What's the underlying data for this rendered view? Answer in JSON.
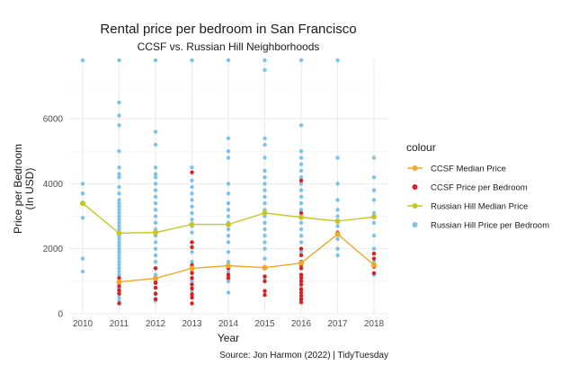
{
  "chart_data": {
    "type": "scatter",
    "title": "Rental price per bedroom in San Francisco",
    "subtitle": "CCSF vs. Russian Hill Neighborhoods",
    "xlabel": "Year",
    "ylabel_lines": [
      "Price per Bedroom",
      "(In USD)"
    ],
    "caption": "Source: Jon Harmon (2022) | TidyTuesday",
    "xlim": [
      2010,
      2018
    ],
    "ylim": [
      0,
      7800
    ],
    "x_ticks": [
      2010,
      2011,
      2012,
      2013,
      2014,
      2015,
      2016,
      2017,
      2018
    ],
    "y_ticks": [
      0,
      2000,
      4000,
      6000
    ],
    "grid": true,
    "legend": {
      "title": "colour",
      "placement": "right",
      "entries": [
        {
          "label": "CCSF Median Price",
          "color": "#F5A623",
          "kind": "line-point"
        },
        {
          "label": "CCSF Price per Bedroom",
          "color": "#E41A1C",
          "kind": "point"
        },
        {
          "label": "Russian Hill Median Price",
          "color": "#C7C723",
          "kind": "line-point"
        },
        {
          "label": "Russian Hill Price per Bedroom",
          "color": "#7CC3EB",
          "kind": "point"
        }
      ]
    },
    "series": [
      {
        "name": "CCSF Median Price",
        "kind": "line",
        "color": "#F5A623",
        "x": [
          2011,
          2012,
          2013,
          2014,
          2015,
          2016,
          2017,
          2018
        ],
        "y": [
          980,
          1090,
          1400,
          1480,
          1420,
          1560,
          2450,
          1500
        ]
      },
      {
        "name": "Russian Hill Median Price",
        "kind": "line",
        "color": "#C7C723",
        "x": [
          2010,
          2011,
          2012,
          2013,
          2014,
          2015,
          2016,
          2017,
          2018
        ],
        "y": [
          3400,
          2480,
          2500,
          2750,
          2750,
          3100,
          2970,
          2850,
          2980
        ]
      },
      {
        "name": "CCSF Price per Bedroom",
        "kind": "points",
        "color": "#E41A1C",
        "points": [
          [
            2011,
            320
          ],
          [
            2011,
            620
          ],
          [
            2011,
            720
          ],
          [
            2011,
            850
          ],
          [
            2011,
            1000
          ],
          [
            2011,
            1100
          ],
          [
            2012,
            450
          ],
          [
            2012,
            620
          ],
          [
            2012,
            800
          ],
          [
            2012,
            950
          ],
          [
            2012,
            1050
          ],
          [
            2012,
            1400
          ],
          [
            2013,
            320
          ],
          [
            2013,
            500
          ],
          [
            2013,
            600
          ],
          [
            2013,
            780
          ],
          [
            2013,
            900
          ],
          [
            2013,
            1100
          ],
          [
            2013,
            1250
          ],
          [
            2013,
            1500
          ],
          [
            2013,
            2050
          ],
          [
            2013,
            2200
          ],
          [
            2013,
            4350
          ],
          [
            2014,
            1100
          ],
          [
            2014,
            1200
          ],
          [
            2014,
            1400
          ],
          [
            2015,
            580
          ],
          [
            2015,
            700
          ],
          [
            2015,
            1000
          ],
          [
            2015,
            1150
          ],
          [
            2015,
            1400
          ],
          [
            2016,
            350
          ],
          [
            2016,
            450
          ],
          [
            2016,
            550
          ],
          [
            2016,
            650
          ],
          [
            2016,
            750
          ],
          [
            2016,
            900
          ],
          [
            2016,
            1000
          ],
          [
            2016,
            1100
          ],
          [
            2016,
            1200
          ],
          [
            2016,
            1400
          ],
          [
            2016,
            1500
          ],
          [
            2016,
            1600
          ],
          [
            2016,
            1800
          ],
          [
            2016,
            2000
          ],
          [
            2016,
            3100
          ],
          [
            2016,
            4100
          ],
          [
            2017,
            2500
          ],
          [
            2018,
            1250
          ],
          [
            2018,
            1450
          ],
          [
            2018,
            1700
          ],
          [
            2018,
            1850
          ]
        ]
      },
      {
        "name": "Russian Hill Price per Bedroom",
        "kind": "points",
        "color": "#7CC3EB",
        "points": [
          [
            2010,
            1300
          ],
          [
            2010,
            1700
          ],
          [
            2010,
            2950
          ],
          [
            2010,
            3700
          ],
          [
            2010,
            4000
          ],
          [
            2010,
            7800
          ],
          [
            2011,
            400
          ],
          [
            2011,
            500
          ],
          [
            2011,
            600
          ],
          [
            2011,
            700
          ],
          [
            2011,
            800
          ],
          [
            2011,
            900
          ],
          [
            2011,
            1000
          ],
          [
            2011,
            1100
          ],
          [
            2011,
            1200
          ],
          [
            2011,
            1300
          ],
          [
            2011,
            1400
          ],
          [
            2011,
            1500
          ],
          [
            2011,
            1600
          ],
          [
            2011,
            1700
          ],
          [
            2011,
            1800
          ],
          [
            2011,
            1900
          ],
          [
            2011,
            2000
          ],
          [
            2011,
            2100
          ],
          [
            2011,
            2200
          ],
          [
            2011,
            2300
          ],
          [
            2011,
            2400
          ],
          [
            2011,
            2500
          ],
          [
            2011,
            2600
          ],
          [
            2011,
            2700
          ],
          [
            2011,
            2800
          ],
          [
            2011,
            2900
          ],
          [
            2011,
            3000
          ],
          [
            2011,
            3100
          ],
          [
            2011,
            3200
          ],
          [
            2011,
            3300
          ],
          [
            2011,
            3400
          ],
          [
            2011,
            3500
          ],
          [
            2011,
            3700
          ],
          [
            2011,
            3900
          ],
          [
            2011,
            4200
          ],
          [
            2011,
            4300
          ],
          [
            2011,
            4500
          ],
          [
            2011,
            5000
          ],
          [
            2011,
            5800
          ],
          [
            2011,
            6100
          ],
          [
            2011,
            6500
          ],
          [
            2011,
            7800
          ],
          [
            2012,
            400
          ],
          [
            2012,
            600
          ],
          [
            2012,
            800
          ],
          [
            2012,
            1000
          ],
          [
            2012,
            1200
          ],
          [
            2012,
            1400
          ],
          [
            2012,
            1600
          ],
          [
            2012,
            1800
          ],
          [
            2012,
            2000
          ],
          [
            2012,
            2200
          ],
          [
            2012,
            2400
          ],
          [
            2012,
            2600
          ],
          [
            2012,
            2800
          ],
          [
            2012,
            3000
          ],
          [
            2012,
            3200
          ],
          [
            2012,
            3400
          ],
          [
            2012,
            3600
          ],
          [
            2012,
            3800
          ],
          [
            2012,
            4000
          ],
          [
            2012,
            4200
          ],
          [
            2012,
            4300
          ],
          [
            2012,
            4500
          ],
          [
            2012,
            5200
          ],
          [
            2012,
            5600
          ],
          [
            2012,
            7800
          ],
          [
            2013,
            700
          ],
          [
            2013,
            1000
          ],
          [
            2013,
            1300
          ],
          [
            2013,
            1600
          ],
          [
            2013,
            1900
          ],
          [
            2013,
            2200
          ],
          [
            2013,
            2500
          ],
          [
            2013,
            2700
          ],
          [
            2013,
            2900
          ],
          [
            2013,
            3100
          ],
          [
            2013,
            3300
          ],
          [
            2013,
            3500
          ],
          [
            2013,
            3700
          ],
          [
            2013,
            3900
          ],
          [
            2013,
            4100
          ],
          [
            2013,
            4500
          ],
          [
            2013,
            7800
          ],
          [
            2014,
            650
          ],
          [
            2014,
            1000
          ],
          [
            2014,
            1300
          ],
          [
            2014,
            1600
          ],
          [
            2014,
            1900
          ],
          [
            2014,
            2200
          ],
          [
            2014,
            2400
          ],
          [
            2014,
            2600
          ],
          [
            2014,
            2800
          ],
          [
            2014,
            3000
          ],
          [
            2014,
            3200
          ],
          [
            2014,
            3400
          ],
          [
            2014,
            3700
          ],
          [
            2014,
            4000
          ],
          [
            2014,
            4800
          ],
          [
            2014,
            5000
          ],
          [
            2014,
            5400
          ],
          [
            2014,
            7800
          ],
          [
            2015,
            1100
          ],
          [
            2015,
            1400
          ],
          [
            2015,
            1700
          ],
          [
            2015,
            2000
          ],
          [
            2015,
            2200
          ],
          [
            2015,
            2400
          ],
          [
            2015,
            2600
          ],
          [
            2015,
            2800
          ],
          [
            2015,
            3000
          ],
          [
            2015,
            3200
          ],
          [
            2015,
            3400
          ],
          [
            2015,
            3600
          ],
          [
            2015,
            3800
          ],
          [
            2015,
            4000
          ],
          [
            2015,
            4200
          ],
          [
            2015,
            4400
          ],
          [
            2015,
            4800
          ],
          [
            2015,
            5200
          ],
          [
            2015,
            5400
          ],
          [
            2015,
            7500
          ],
          [
            2015,
            7800
          ],
          [
            2016,
            400
          ],
          [
            2016,
            800
          ],
          [
            2016,
            1200
          ],
          [
            2016,
            1600
          ],
          [
            2016,
            1900
          ],
          [
            2016,
            2200
          ],
          [
            2016,
            2400
          ],
          [
            2016,
            2600
          ],
          [
            2016,
            2800
          ],
          [
            2016,
            3000
          ],
          [
            2016,
            3200
          ],
          [
            2016,
            3400
          ],
          [
            2016,
            3600
          ],
          [
            2016,
            3800
          ],
          [
            2016,
            4000
          ],
          [
            2016,
            4200
          ],
          [
            2016,
            4400
          ],
          [
            2016,
            4600
          ],
          [
            2016,
            4800
          ],
          [
            2016,
            5000
          ],
          [
            2016,
            5800
          ],
          [
            2016,
            7800
          ],
          [
            2017,
            1800
          ],
          [
            2017,
            2000
          ],
          [
            2017,
            2300
          ],
          [
            2017,
            2700
          ],
          [
            2017,
            3000
          ],
          [
            2017,
            3200
          ],
          [
            2017,
            3500
          ],
          [
            2017,
            4000
          ],
          [
            2017,
            4800
          ],
          [
            2017,
            7800
          ],
          [
            2018,
            1200
          ],
          [
            2018,
            1600
          ],
          [
            2018,
            2000
          ],
          [
            2018,
            2400
          ],
          [
            2018,
            2800
          ],
          [
            2018,
            3100
          ],
          [
            2018,
            3500
          ],
          [
            2018,
            3800
          ],
          [
            2018,
            4200
          ],
          [
            2018,
            4800
          ]
        ]
      }
    ]
  }
}
